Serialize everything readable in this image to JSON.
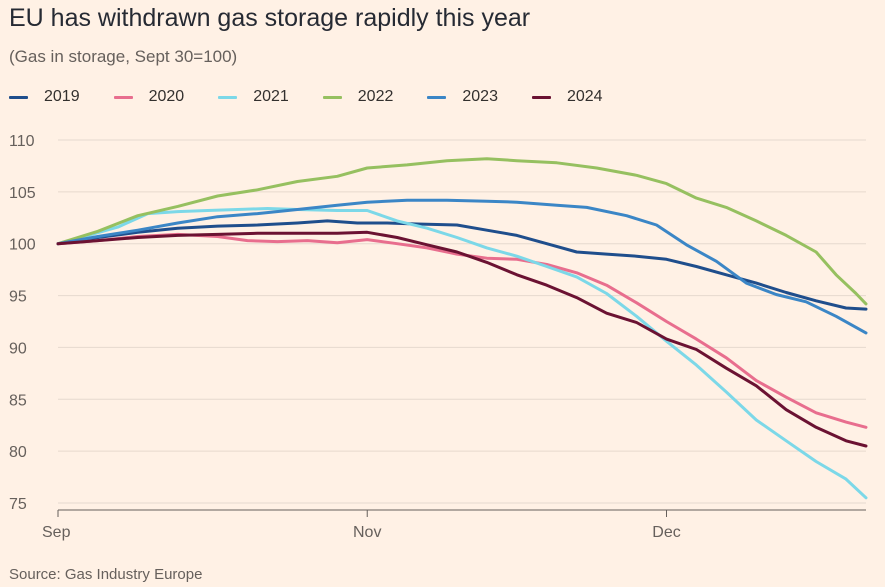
{
  "title": "EU has withdrawn gas storage rapidly this year",
  "subtitle": "(Gas in storage, Sept 30=100)",
  "source": "Source: Gas Industry Europe",
  "chart_data": {
    "type": "line",
    "xlabel": "",
    "ylabel": "",
    "x_range_days_after_sept30": [
      0,
      81
    ],
    "x_ticks": [
      {
        "label": "Sep",
        "day": 0
      },
      {
        "label": "Nov",
        "day": 31
      },
      {
        "label": "Dec",
        "day": 61
      }
    ],
    "ylim": [
      75,
      110
    ],
    "y_ticks": [
      75,
      80,
      85,
      90,
      95,
      100,
      105,
      110
    ],
    "grid": true,
    "legend_placement": "top-left",
    "series": [
      {
        "name": "2019",
        "color": "#1F4E8C",
        "points": [
          [
            0,
            100
          ],
          [
            4,
            100.6
          ],
          [
            8,
            101.1
          ],
          [
            12,
            101.5
          ],
          [
            16,
            101.7
          ],
          [
            20,
            101.8
          ],
          [
            24,
            102.0
          ],
          [
            27,
            102.2
          ],
          [
            30,
            102.0
          ],
          [
            33,
            102.0
          ],
          [
            36,
            101.9
          ],
          [
            40,
            101.8
          ],
          [
            43,
            101.3
          ],
          [
            46,
            100.8
          ],
          [
            49,
            100.0
          ],
          [
            52,
            99.2
          ],
          [
            55,
            99.0
          ],
          [
            58,
            98.8
          ],
          [
            61,
            98.5
          ],
          [
            64,
            97.8
          ],
          [
            67,
            97.0
          ],
          [
            70,
            96.2
          ],
          [
            73,
            95.3
          ],
          [
            76,
            94.5
          ],
          [
            79,
            93.8
          ],
          [
            81,
            93.7
          ]
        ]
      },
      {
        "name": "2020",
        "color": "#E86E8E",
        "points": [
          [
            0,
            100
          ],
          [
            4,
            100.3
          ],
          [
            8,
            100.7
          ],
          [
            12,
            100.9
          ],
          [
            16,
            100.7
          ],
          [
            19,
            100.3
          ],
          [
            22,
            100.2
          ],
          [
            25,
            100.3
          ],
          [
            28,
            100.1
          ],
          [
            31,
            100.4
          ],
          [
            34,
            100.0
          ],
          [
            37,
            99.6
          ],
          [
            40,
            99.0
          ],
          [
            43,
            98.6
          ],
          [
            46,
            98.5
          ],
          [
            49,
            98.0
          ],
          [
            52,
            97.2
          ],
          [
            55,
            96.0
          ],
          [
            58,
            94.3
          ],
          [
            61,
            92.5
          ],
          [
            64,
            90.8
          ],
          [
            67,
            89.0
          ],
          [
            70,
            86.8
          ],
          [
            73,
            85.2
          ],
          [
            76,
            83.7
          ],
          [
            79,
            82.8
          ],
          [
            81,
            82.3
          ]
        ]
      },
      {
        "name": "2021",
        "color": "#7CD8E8",
        "points": [
          [
            0,
            100
          ],
          [
            3,
            100.8
          ],
          [
            6,
            101.6
          ],
          [
            9,
            102.9
          ],
          [
            12,
            103.1
          ],
          [
            15,
            103.2
          ],
          [
            18,
            103.3
          ],
          [
            21,
            103.4
          ],
          [
            24,
            103.3
          ],
          [
            28,
            103.2
          ],
          [
            31,
            103.2
          ],
          [
            34,
            102.2
          ],
          [
            37,
            101.5
          ],
          [
            40,
            100.6
          ],
          [
            43,
            99.6
          ],
          [
            46,
            98.8
          ],
          [
            49,
            97.8
          ],
          [
            52,
            96.8
          ],
          [
            55,
            95.2
          ],
          [
            58,
            93.0
          ],
          [
            61,
            90.6
          ],
          [
            64,
            88.3
          ],
          [
            67,
            85.7
          ],
          [
            70,
            83.0
          ],
          [
            73,
            81.0
          ],
          [
            76,
            79.0
          ],
          [
            79,
            77.3
          ],
          [
            81,
            75.5
          ]
        ]
      },
      {
        "name": "2022",
        "color": "#96C060",
        "points": [
          [
            0,
            100
          ],
          [
            4,
            101.2
          ],
          [
            8,
            102.7
          ],
          [
            12,
            103.6
          ],
          [
            16,
            104.6
          ],
          [
            20,
            105.2
          ],
          [
            24,
            106.0
          ],
          [
            28,
            106.5
          ],
          [
            31,
            107.3
          ],
          [
            35,
            107.6
          ],
          [
            39,
            108.0
          ],
          [
            43,
            108.2
          ],
          [
            46,
            108.0
          ],
          [
            50,
            107.8
          ],
          [
            54,
            107.3
          ],
          [
            58,
            106.6
          ],
          [
            61,
            105.8
          ],
          [
            64,
            104.4
          ],
          [
            67,
            103.5
          ],
          [
            70,
            102.2
          ],
          [
            73,
            100.8
          ],
          [
            76,
            99.2
          ],
          [
            78,
            97.0
          ],
          [
            80,
            95.2
          ],
          [
            81,
            94.2
          ]
        ]
      },
      {
        "name": "2023",
        "color": "#3B86C6",
        "points": [
          [
            0,
            100
          ],
          [
            4,
            100.7
          ],
          [
            8,
            101.3
          ],
          [
            12,
            102.0
          ],
          [
            16,
            102.6
          ],
          [
            20,
            102.9
          ],
          [
            24,
            103.3
          ],
          [
            28,
            103.7
          ],
          [
            31,
            104.0
          ],
          [
            35,
            104.2
          ],
          [
            39,
            104.2
          ],
          [
            43,
            104.1
          ],
          [
            46,
            104.0
          ],
          [
            50,
            103.7
          ],
          [
            53,
            103.5
          ],
          [
            57,
            102.7
          ],
          [
            60,
            101.8
          ],
          [
            63,
            99.9
          ],
          [
            66,
            98.3
          ],
          [
            69,
            96.2
          ],
          [
            72,
            95.1
          ],
          [
            75,
            94.4
          ],
          [
            78,
            93.0
          ],
          [
            81,
            91.4
          ]
        ]
      },
      {
        "name": "2024",
        "color": "#6B1232",
        "points": [
          [
            0,
            100
          ],
          [
            4,
            100.3
          ],
          [
            8,
            100.6
          ],
          [
            12,
            100.8
          ],
          [
            16,
            100.9
          ],
          [
            20,
            101.0
          ],
          [
            24,
            101.0
          ],
          [
            28,
            101.0
          ],
          [
            31,
            101.1
          ],
          [
            34,
            100.6
          ],
          [
            37,
            99.9
          ],
          [
            40,
            99.2
          ],
          [
            43,
            98.2
          ],
          [
            46,
            97.0
          ],
          [
            49,
            96.0
          ],
          [
            52,
            94.8
          ],
          [
            55,
            93.3
          ],
          [
            58,
            92.4
          ],
          [
            61,
            90.8
          ],
          [
            64,
            89.8
          ],
          [
            67,
            88.0
          ],
          [
            70,
            86.3
          ],
          [
            73,
            84.0
          ],
          [
            76,
            82.3
          ],
          [
            79,
            81.0
          ],
          [
            81,
            80.5
          ]
        ]
      }
    ]
  }
}
